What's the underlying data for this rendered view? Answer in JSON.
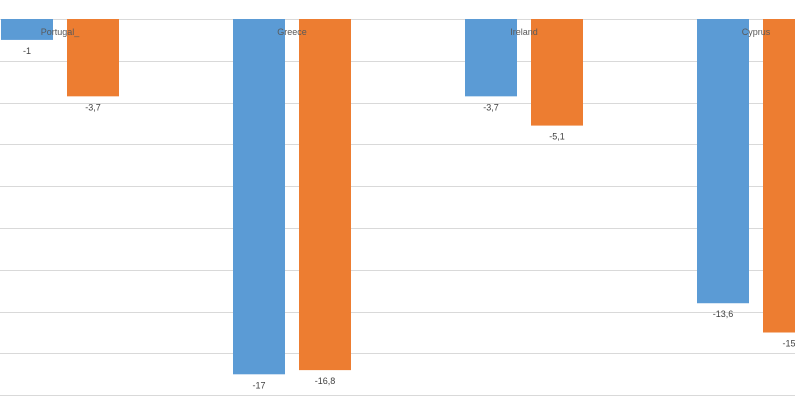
{
  "chart_data": {
    "type": "bar",
    "title": "",
    "xlabel": "",
    "ylabel": "",
    "categories": [
      "Portugal_",
      "Greece",
      "Ireland",
      "Cyprus"
    ],
    "series": [
      {
        "color": "#5B9BD5",
        "values": [
          -1,
          -17,
          -3.7,
          -13.6
        ]
      },
      {
        "color": "#ED7D31",
        "values": [
          -3.7,
          -16.8,
          -5.1,
          -15.0
        ]
      }
    ],
    "value_labels": [
      [
        "-1",
        "-17",
        "-3,7",
        "-13,6"
      ],
      [
        "-3,7",
        "-16,8",
        "-5,1",
        "-15"
      ]
    ],
    "ylim": [
      -18,
      0
    ],
    "grid": true,
    "gridline_color": "#D9D9D9"
  }
}
